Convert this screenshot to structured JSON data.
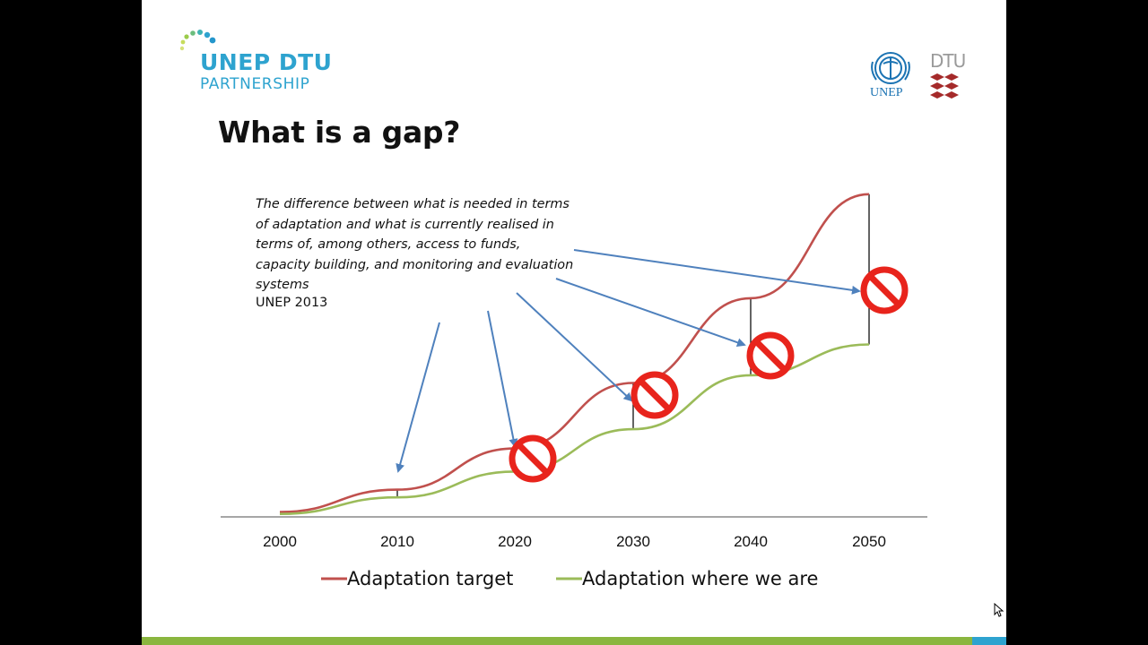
{
  "slide": {
    "logo": {
      "line1": "UNEP DTU",
      "line2": "PARTNERSHIP"
    },
    "unep_logo_text": "UNEP",
    "dtu_logo_text": "DTU",
    "title": "What is a gap?",
    "definition": "The difference between what is needed in terms of adaptation and what is currently realised in terms of, among others, access to funds, capacity building, and monitoring and evaluation systems",
    "source": "UNEP 2013"
  },
  "colors": {
    "target": "#c0504d",
    "current": "#9bbb59",
    "arrow": "#4f81bd",
    "no_sign": "#e8241c",
    "accent_green": "#8ab63f",
    "accent_blue": "#2ea3cf"
  },
  "icons": [
    "no-entry-icon",
    "arrow-icon",
    "mouse-cursor-icon"
  ],
  "chart_data": {
    "type": "line",
    "categories": [
      "2000",
      "2010",
      "2020",
      "2030",
      "2040",
      "2050"
    ],
    "series": [
      {
        "name": "Adaptation target",
        "values": [
          1.5,
          7.3,
          18,
          35,
          57,
          84
        ]
      },
      {
        "name": "Adaptation where we are",
        "values": [
          1,
          5.3,
          12,
          23,
          37,
          45
        ]
      }
    ],
    "gap_marked_at": [
      "2010",
      "2020",
      "2030",
      "2040",
      "2050"
    ],
    "ylim": [
      0,
      100
    ],
    "xlabel": "",
    "ylabel": "",
    "grid": false,
    "legend_position": "bottom"
  }
}
